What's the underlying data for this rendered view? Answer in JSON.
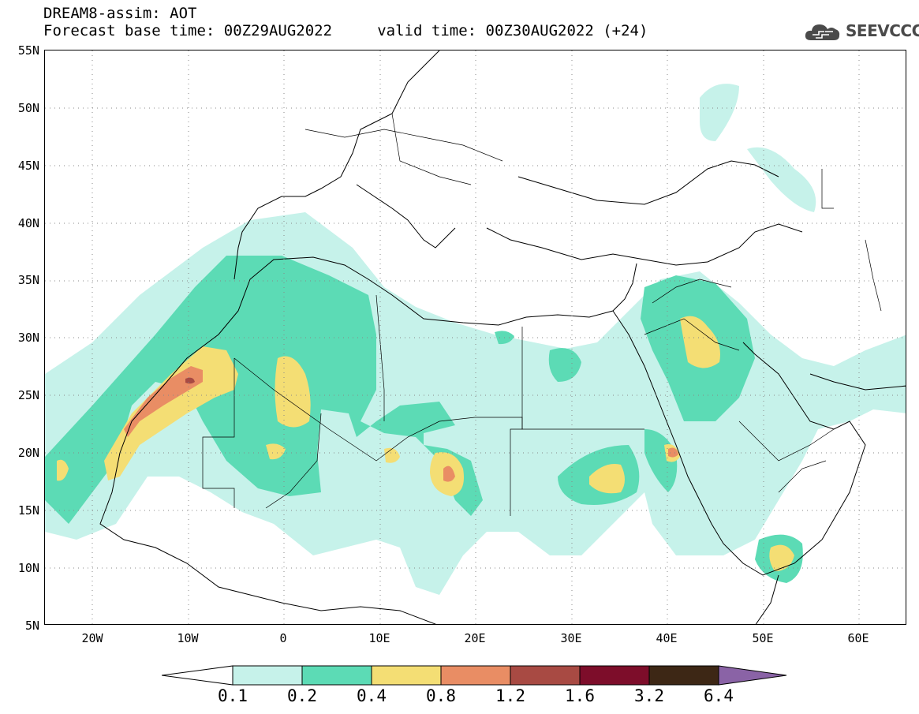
{
  "header": {
    "line1": "DREAM8-assim: AOT",
    "line2": "Forecast base time: 00Z29AUG2022     valid time: 00Z30AUG2022 (+24)"
  },
  "logo": {
    "text": "SEEVCCC",
    "icon": "cloud-icon"
  },
  "axes": {
    "lat_labels": [
      "55N",
      "50N",
      "45N",
      "40N",
      "35N",
      "30N",
      "25N",
      "20N",
      "15N",
      "10N",
      "5N"
    ],
    "lon_labels": [
      "20W",
      "10W",
      "0",
      "10E",
      "20E",
      "30E",
      "40E",
      "50E",
      "60E"
    ],
    "lat_range": [
      5,
      55
    ],
    "lon_range": [
      -25,
      65
    ],
    "grid": "dotted"
  },
  "colorbar": {
    "labels": [
      "0.1",
      "0.2",
      "0.4",
      "0.8",
      "1.2",
      "1.6",
      "3.2",
      "6.4"
    ],
    "colors": [
      "#c6f2ea",
      "#5cdbb5",
      "#f4de74",
      "#e98d64",
      "#a84a43",
      "#7d0d2a",
      "#3d2715",
      "#8a63a6"
    ],
    "under_color": "#ffffff"
  }
}
